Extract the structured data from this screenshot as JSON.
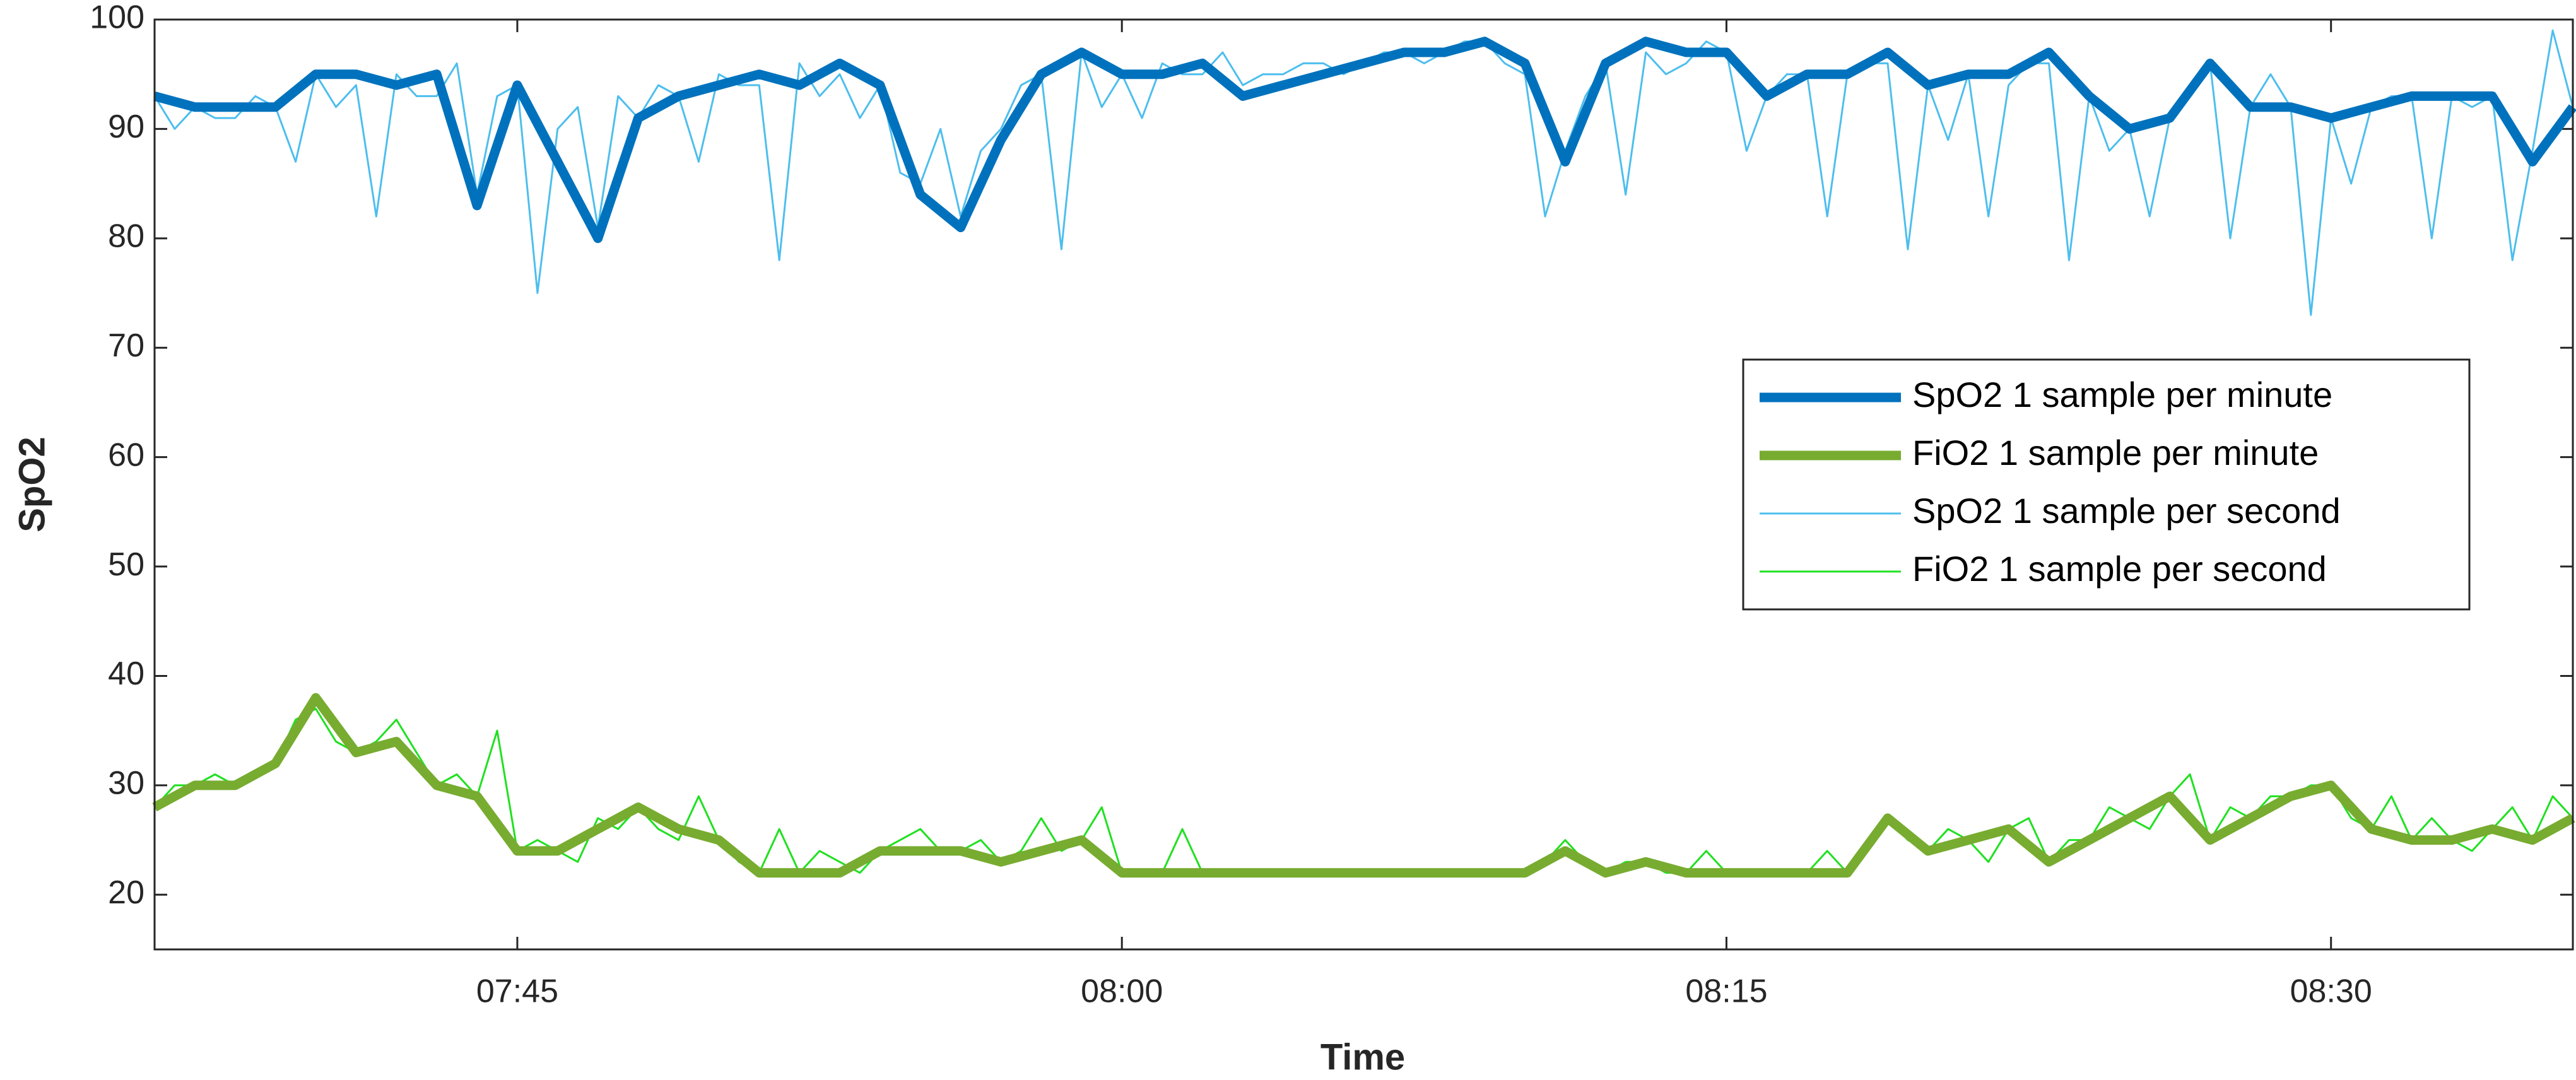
{
  "chart_data": {
    "type": "line",
    "xlabel": "Time",
    "ylabel": "SpO2",
    "xlim": [
      "07:36",
      "08:36"
    ],
    "xticks": [
      "07:45",
      "08:00",
      "08:15",
      "08:30"
    ],
    "ylim": [
      15,
      100
    ],
    "yticks": [
      20,
      30,
      40,
      50,
      60,
      70,
      80,
      90,
      100
    ],
    "legend": "right",
    "series": [
      {
        "name": "SpO2 1 sample per minute",
        "color": "#0072bd",
        "width": "thick",
        "x": [
          "07:36",
          "07:37",
          "07:38",
          "07:39",
          "07:40",
          "07:41",
          "07:42",
          "07:43",
          "07:44",
          "07:45",
          "07:46",
          "07:47",
          "07:48",
          "07:49",
          "07:50",
          "07:51",
          "07:52",
          "07:53",
          "07:54",
          "07:55",
          "07:56",
          "07:57",
          "07:58",
          "07:59",
          "08:00",
          "08:01",
          "08:02",
          "08:03",
          "08:04",
          "08:05",
          "08:06",
          "08:07",
          "08:08",
          "08:09",
          "08:10",
          "08:11",
          "08:12",
          "08:13",
          "08:14",
          "08:15",
          "08:16",
          "08:17",
          "08:18",
          "08:19",
          "08:20",
          "08:21",
          "08:22",
          "08:23",
          "08:24",
          "08:25",
          "08:26",
          "08:27",
          "08:28",
          "08:29",
          "08:30",
          "08:31",
          "08:32",
          "08:33",
          "08:34",
          "08:35",
          "08:36"
        ],
        "values": [
          93,
          92,
          92,
          92,
          95,
          95,
          94,
          95,
          83,
          94,
          87,
          80,
          91,
          93,
          94,
          95,
          94,
          96,
          94,
          84,
          81,
          89,
          95,
          97,
          95,
          95,
          96,
          93,
          94,
          95,
          96,
          97,
          97,
          98,
          96,
          87,
          96,
          98,
          97,
          97,
          93,
          95,
          95,
          97,
          94,
          95,
          95,
          97,
          93,
          90,
          91,
          96,
          92,
          92,
          91,
          92,
          93,
          93,
          93,
          87,
          92
        ]
      },
      {
        "name": "FiO2 1 sample per minute",
        "color": "#77ac30",
        "width": "thick",
        "x": [
          "07:36",
          "07:37",
          "07:38",
          "07:39",
          "07:40",
          "07:41",
          "07:42",
          "07:43",
          "07:44",
          "07:45",
          "07:46",
          "07:47",
          "07:48",
          "07:49",
          "07:50",
          "07:51",
          "07:52",
          "07:53",
          "07:54",
          "07:55",
          "07:56",
          "07:57",
          "07:58",
          "07:59",
          "08:00",
          "08:01",
          "08:02",
          "08:03",
          "08:04",
          "08:05",
          "08:06",
          "08:07",
          "08:08",
          "08:09",
          "08:10",
          "08:11",
          "08:12",
          "08:13",
          "08:14",
          "08:15",
          "08:16",
          "08:17",
          "08:18",
          "08:19",
          "08:20",
          "08:21",
          "08:22",
          "08:23",
          "08:24",
          "08:25",
          "08:26",
          "08:27",
          "08:28",
          "08:29",
          "08:30",
          "08:31",
          "08:32",
          "08:33",
          "08:34",
          "08:35",
          "08:36"
        ],
        "values": [
          28,
          30,
          30,
          32,
          38,
          33,
          34,
          30,
          29,
          24,
          24,
          26,
          28,
          26,
          25,
          22,
          22,
          22,
          24,
          24,
          24,
          23,
          24,
          25,
          22,
          22,
          22,
          22,
          22,
          22,
          22,
          22,
          22,
          22,
          22,
          24,
          22,
          23,
          22,
          22,
          22,
          22,
          22,
          27,
          24,
          25,
          26,
          23,
          25,
          27,
          29,
          25,
          27,
          29,
          30,
          26,
          25,
          25,
          26,
          25,
          27
        ]
      },
      {
        "name": "SpO2 1 sample per second",
        "color": "#4dbeee",
        "width": "thin",
        "x": [
          "07:36:00",
          "07:36:30",
          "07:37:00",
          "07:37:30",
          "07:38:00",
          "07:38:30",
          "07:39:00",
          "07:39:30",
          "07:40:00",
          "07:40:30",
          "07:41:00",
          "07:41:30",
          "07:42:00",
          "07:42:30",
          "07:43:00",
          "07:43:30",
          "07:44:00",
          "07:44:30",
          "07:45:00",
          "07:45:30",
          "07:46:00",
          "07:46:30",
          "07:47:00",
          "07:47:30",
          "07:48:00",
          "07:48:30",
          "07:49:00",
          "07:49:30",
          "07:50:00",
          "07:50:30",
          "07:51:00",
          "07:51:30",
          "07:52:00",
          "07:52:30",
          "07:53:00",
          "07:53:30",
          "07:54:00",
          "07:54:30",
          "07:55:00",
          "07:55:30",
          "07:56:00",
          "07:56:30",
          "07:57:00",
          "07:57:30",
          "07:58:00",
          "07:58:30",
          "07:59:00",
          "07:59:30",
          "08:00:00",
          "08:00:30",
          "08:01:00",
          "08:01:30",
          "08:02:00",
          "08:02:30",
          "08:03:00",
          "08:03:30",
          "08:04:00",
          "08:04:30",
          "08:05:00",
          "08:05:30",
          "08:06:00",
          "08:06:30",
          "08:07:00",
          "08:07:30",
          "08:08:00",
          "08:08:30",
          "08:09:00",
          "08:09:30",
          "08:10:00",
          "08:10:30",
          "08:11:00",
          "08:11:30",
          "08:12:00",
          "08:12:30",
          "08:13:00",
          "08:13:30",
          "08:14:00",
          "08:14:30",
          "08:15:00",
          "08:15:30",
          "08:16:00",
          "08:16:30",
          "08:17:00",
          "08:17:30",
          "08:18:00",
          "08:18:30",
          "08:19:00",
          "08:19:30",
          "08:20:00",
          "08:20:30",
          "08:21:00",
          "08:21:30",
          "08:22:00",
          "08:22:30",
          "08:23:00",
          "08:23:30",
          "08:24:00",
          "08:24:30",
          "08:25:00",
          "08:25:30",
          "08:26:00",
          "08:26:30",
          "08:27:00",
          "08:27:30",
          "08:28:00",
          "08:28:30",
          "08:29:00",
          "08:29:30",
          "08:30:00",
          "08:30:30",
          "08:31:00",
          "08:31:30",
          "08:32:00",
          "08:32:30",
          "08:33:00",
          "08:33:30",
          "08:34:00",
          "08:34:30",
          "08:35:00",
          "08:35:30",
          "08:36:00"
        ],
        "values": [
          93,
          90,
          92,
          91,
          91,
          93,
          92,
          87,
          95,
          92,
          94,
          82,
          95,
          93,
          93,
          96,
          84,
          93,
          94,
          75,
          90,
          92,
          81,
          93,
          91,
          94,
          93,
          87,
          95,
          94,
          94,
          78,
          96,
          93,
          95,
          91,
          94,
          86,
          85,
          90,
          82,
          88,
          90,
          94,
          95,
          79,
          97,
          92,
          95,
          91,
          96,
          95,
          95,
          97,
          94,
          95,
          95,
          96,
          96,
          95,
          96,
          97,
          97,
          96,
          97,
          98,
          98,
          96,
          95,
          82,
          88,
          93,
          96,
          84,
          97,
          95,
          96,
          98,
          97,
          88,
          93,
          95,
          95,
          82,
          95,
          96,
          96,
          79,
          94,
          89,
          95,
          82,
          94,
          96,
          96,
          78,
          93,
          88,
          90,
          82,
          91,
          93,
          96,
          80,
          92,
          95,
          92,
          73,
          91,
          85,
          92,
          93,
          93,
          80,
          93,
          92,
          93,
          78,
          88,
          99,
          92
        ]
      },
      {
        "name": "FiO2 1 sample per second",
        "color": "#1fe01f",
        "width": "thin",
        "x": [
          "07:36:00",
          "07:36:30",
          "07:37:00",
          "07:37:30",
          "07:38:00",
          "07:38:30",
          "07:39:00",
          "07:39:30",
          "07:40:00",
          "07:40:30",
          "07:41:00",
          "07:41:30",
          "07:42:00",
          "07:42:30",
          "07:43:00",
          "07:43:30",
          "07:44:00",
          "07:44:30",
          "07:45:00",
          "07:45:30",
          "07:46:00",
          "07:46:30",
          "07:47:00",
          "07:47:30",
          "07:48:00",
          "07:48:30",
          "07:49:00",
          "07:49:30",
          "07:50:00",
          "07:50:30",
          "07:51:00",
          "07:51:30",
          "07:52:00",
          "07:52:30",
          "07:53:00",
          "07:53:30",
          "07:54:00",
          "07:54:30",
          "07:55:00",
          "07:55:30",
          "07:56:00",
          "07:56:30",
          "07:57:00",
          "07:57:30",
          "07:58:00",
          "07:58:30",
          "07:59:00",
          "07:59:30",
          "08:00:00",
          "08:00:30",
          "08:01:00",
          "08:01:30",
          "08:02:00",
          "08:02:30",
          "08:03:00",
          "08:03:30",
          "08:04:00",
          "08:04:30",
          "08:05:00",
          "08:05:30",
          "08:06:00",
          "08:06:30",
          "08:07:00",
          "08:07:30",
          "08:08:00",
          "08:08:30",
          "08:09:00",
          "08:09:30",
          "08:10:00",
          "08:10:30",
          "08:11:00",
          "08:11:30",
          "08:12:00",
          "08:12:30",
          "08:13:00",
          "08:13:30",
          "08:14:00",
          "08:14:30",
          "08:15:00",
          "08:15:30",
          "08:16:00",
          "08:16:30",
          "08:17:00",
          "08:17:30",
          "08:18:00",
          "08:18:30",
          "08:19:00",
          "08:19:30",
          "08:20:00",
          "08:20:30",
          "08:21:00",
          "08:21:30",
          "08:22:00",
          "08:22:30",
          "08:23:00",
          "08:23:30",
          "08:24:00",
          "08:24:30",
          "08:25:00",
          "08:25:30",
          "08:26:00",
          "08:26:30",
          "08:27:00",
          "08:27:30",
          "08:28:00",
          "08:28:30",
          "08:29:00",
          "08:29:30",
          "08:30:00",
          "08:30:30",
          "08:31:00",
          "08:31:30",
          "08:32:00",
          "08:32:30",
          "08:33:00",
          "08:33:30",
          "08:34:00",
          "08:34:30",
          "08:35:00",
          "08:35:30",
          "08:36:00"
        ],
        "values": [
          28,
          30,
          30,
          31,
          30,
          31,
          32,
          36,
          37,
          34,
          33,
          34,
          36,
          33,
          30,
          31,
          29,
          35,
          24,
          25,
          24,
          23,
          27,
          26,
          28,
          26,
          25,
          29,
          25,
          23,
          22,
          26,
          22,
          24,
          23,
          22,
          24,
          25,
          26,
          24,
          24,
          25,
          23,
          24,
          27,
          24,
          25,
          28,
          22,
          22,
          22,
          26,
          22,
          22,
          22,
          22,
          22,
          22,
          22,
          22,
          22,
          22,
          22,
          22,
          22,
          22,
          22,
          22,
          22,
          23,
          25,
          23,
          22,
          23,
          23,
          22,
          22,
          24,
          22,
          22,
          22,
          22,
          22,
          24,
          22,
          24,
          27,
          25,
          24,
          26,
          25,
          23,
          26,
          27,
          23,
          25,
          25,
          28,
          27,
          26,
          29,
          31,
          25,
          28,
          27,
          29,
          29,
          30,
          30,
          27,
          26,
          29,
          25,
          27,
          25,
          24,
          26,
          28,
          25,
          29,
          27
        ]
      }
    ]
  }
}
